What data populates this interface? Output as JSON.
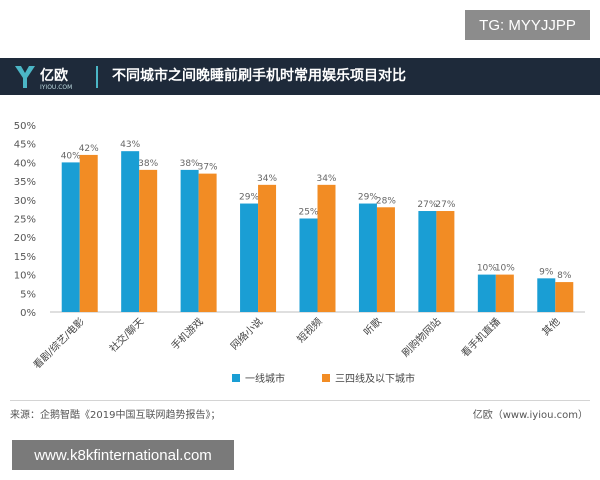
{
  "badge": "TG: MYYJJPP",
  "header": {
    "title": "不同城市之间晚睡前刷手机时常用娱乐项目对比",
    "logo_text": "亿欧",
    "logo_sub": "IYIOU.COM"
  },
  "footer": {
    "source": "来源：企鹅智酷《2019中国互联网趋势报告》；",
    "brand": "亿欧（www.iyiou.com）"
  },
  "watermark": "www.k8kfinternational.com",
  "chart_data": {
    "type": "bar",
    "title": "",
    "xlabel": "",
    "ylabel": "",
    "ylim": [
      0,
      50
    ],
    "yticks": [
      "0%",
      "5%",
      "10%",
      "15%",
      "20%",
      "25%",
      "30%",
      "35%",
      "40%",
      "45%",
      "50%"
    ],
    "categories": [
      "看剧/综艺/电影",
      "社交/聊天",
      "手机游戏",
      "网络小说",
      "短视频",
      "听歌",
      "刷购物网站",
      "看手机直播",
      "其他"
    ],
    "series": [
      {
        "name": "一线城市",
        "color": "#1a9ed4",
        "values": [
          40,
          43,
          38,
          29,
          25,
          29,
          27,
          10,
          9
        ],
        "labels": [
          "40%",
          "43%",
          "38%",
          "29%",
          "25%",
          "29%",
          "27%",
          "10%",
          "9%"
        ]
      },
      {
        "name": "三四线及以下城市",
        "color": "#f28c24",
        "values": [
          42,
          38,
          37,
          34,
          34,
          28,
          27,
          10,
          8
        ],
        "labels": [
          "42%",
          "38%",
          "37%",
          "34%",
          "34%",
          "28%",
          "27%",
          "10%",
          "8%"
        ]
      }
    ],
    "grid": false,
    "legend_position": "bottom-center"
  }
}
